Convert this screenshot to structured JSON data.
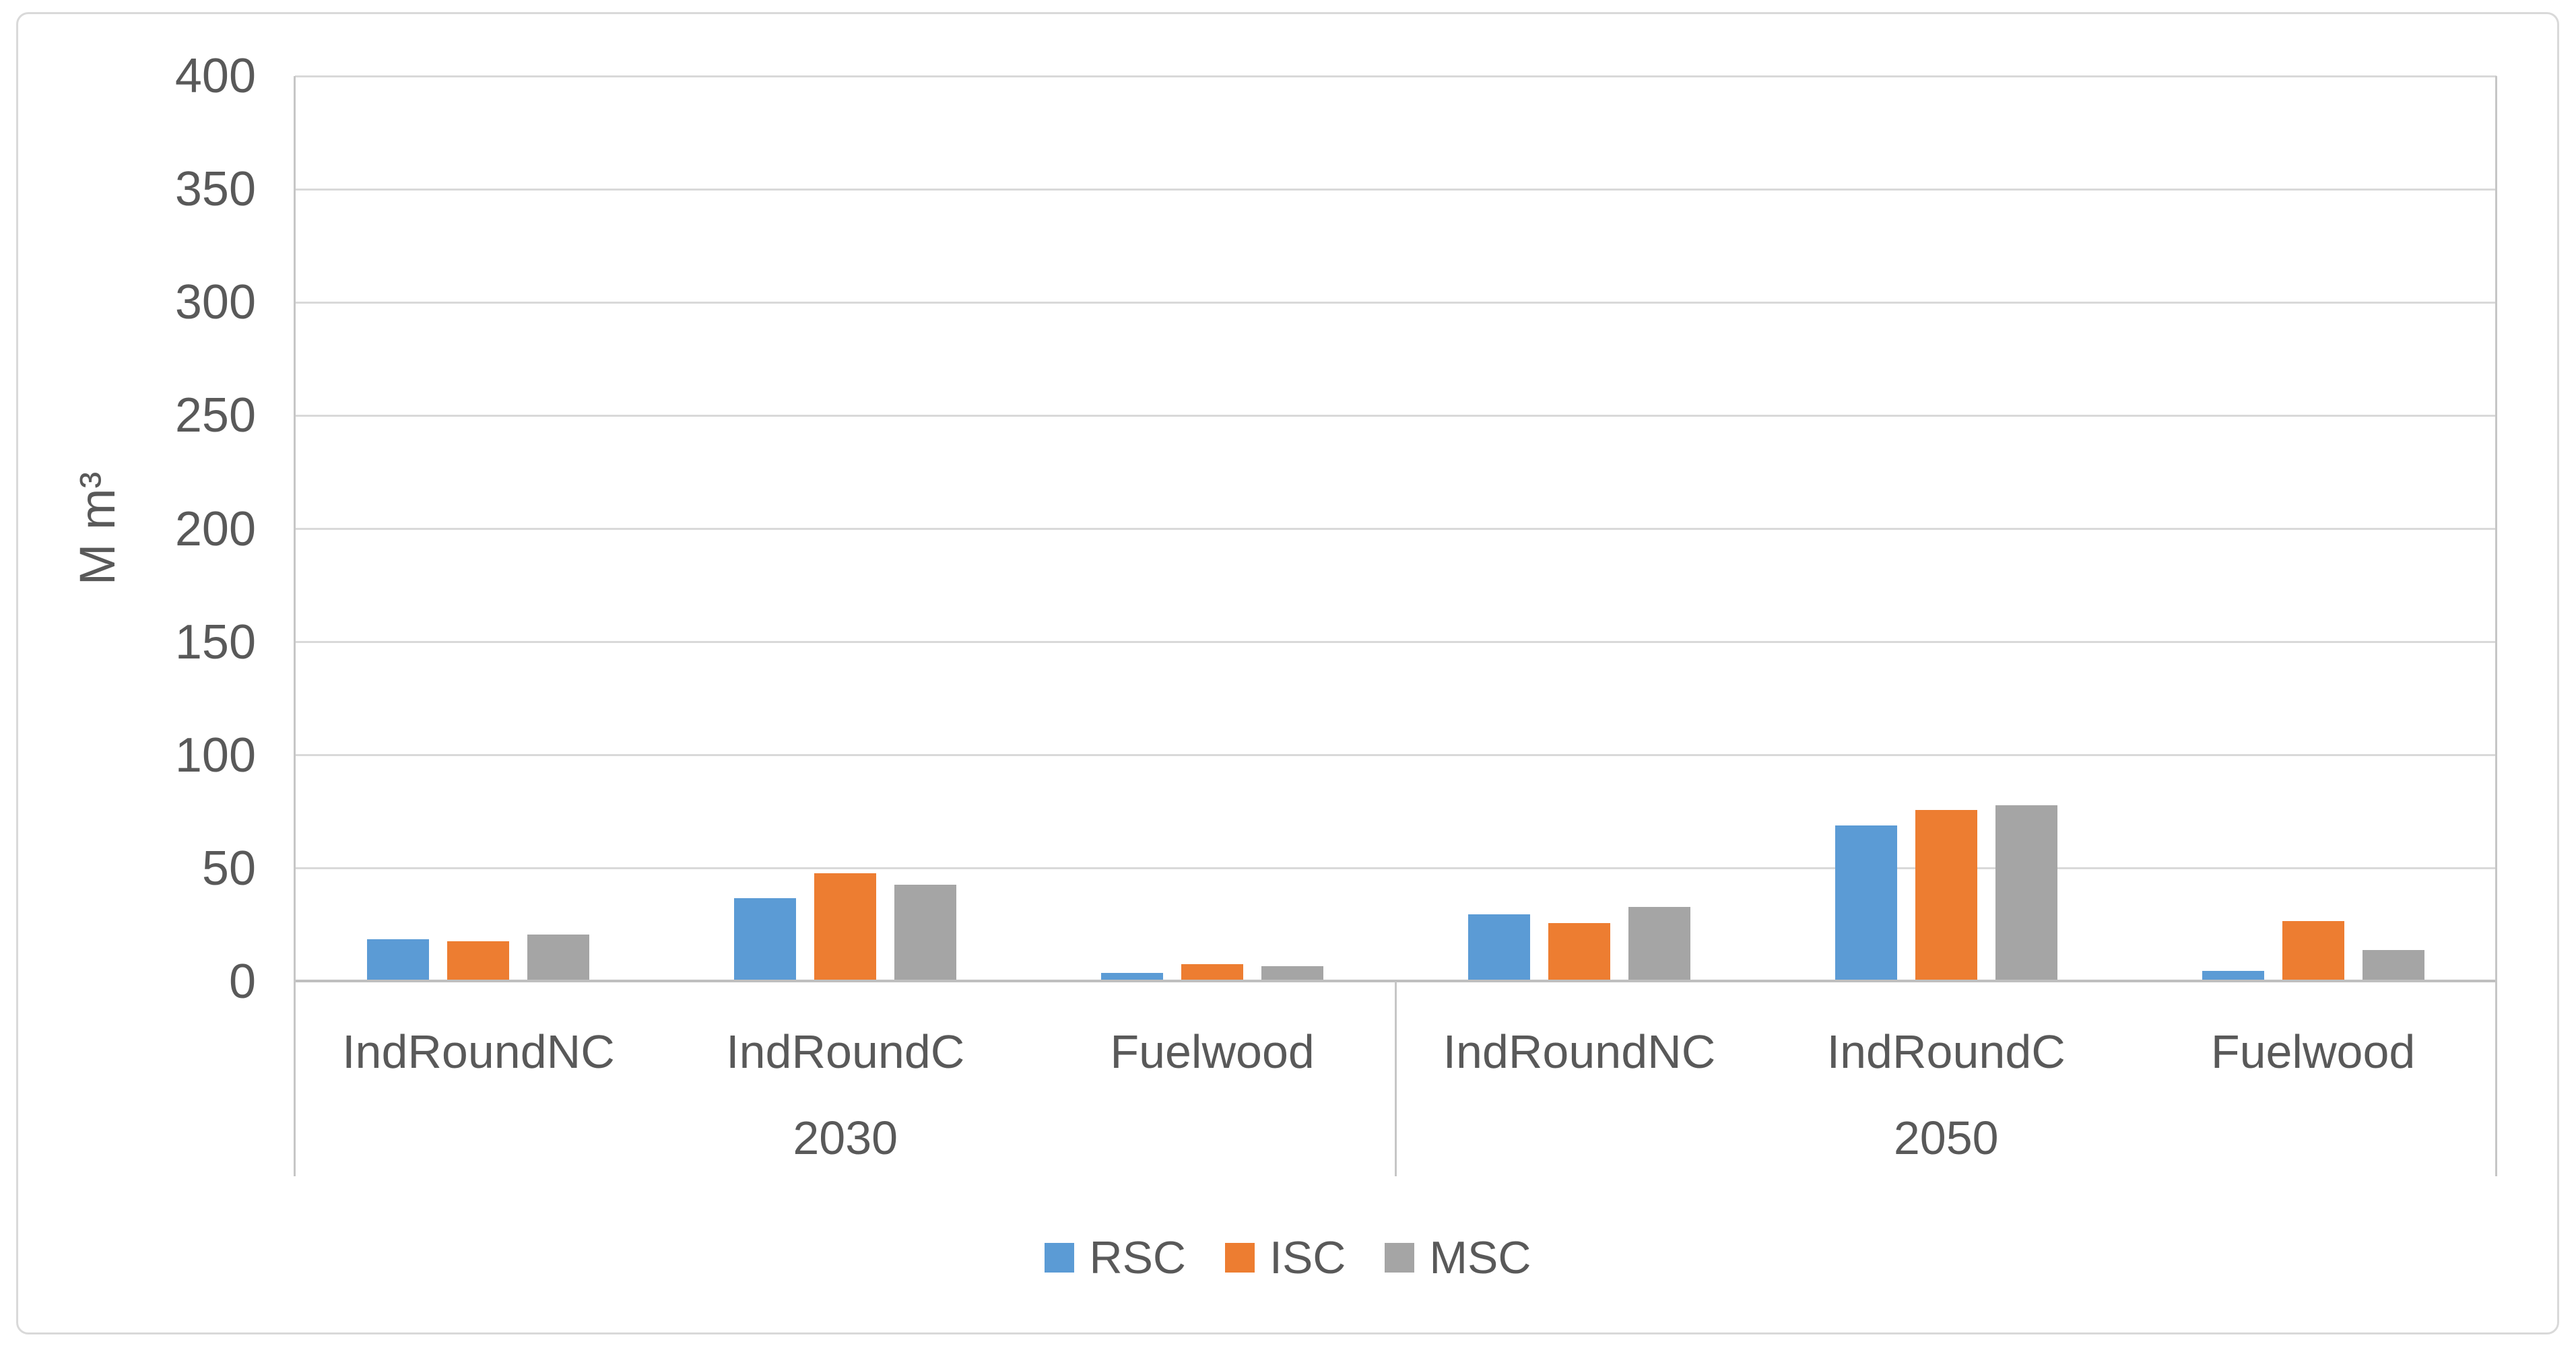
{
  "chart_data": {
    "type": "bar",
    "title": "",
    "ylabel": "M m³",
    "xlabel": "",
    "ylim": [
      0,
      400
    ],
    "yticks": [
      0,
      50,
      100,
      150,
      200,
      250,
      300,
      350,
      400
    ],
    "grid": true,
    "legend_position": "bottom",
    "groups": [
      {
        "label": "2030",
        "categories": [
          "IndRoundNC",
          "IndRoundC",
          "Fuelwood"
        ]
      },
      {
        "label": "2050",
        "categories": [
          "IndRoundNC",
          "IndRoundC",
          "Fuelwood"
        ]
      }
    ],
    "series": [
      {
        "name": "RSC",
        "color": "#5B9BD5",
        "values": [
          [
            18,
            36,
            3
          ],
          [
            29,
            68,
            4
          ]
        ]
      },
      {
        "name": "ISC",
        "color": "#ED7D31",
        "values": [
          [
            17,
            47,
            7
          ],
          [
            25,
            75,
            26
          ]
        ]
      },
      {
        "name": "MSC",
        "color": "#A5A5A5",
        "values": [
          [
            20,
            42,
            6
          ],
          [
            32,
            77,
            13
          ]
        ]
      }
    ]
  }
}
